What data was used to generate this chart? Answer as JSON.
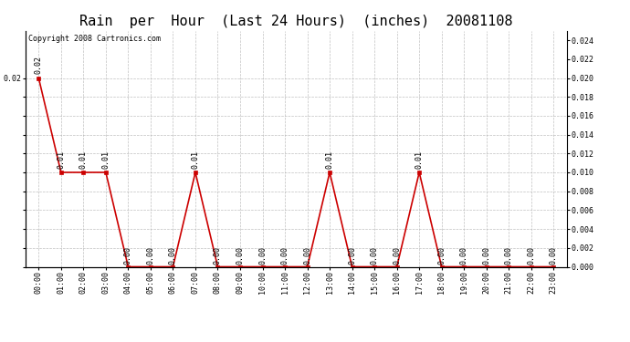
{
  "title": "Rain  per  Hour  (Last 24 Hours)  (inches)  20081108",
  "copyright_text": "Copyright 2008 Cartronics.com",
  "hours": [
    "00:00",
    "01:00",
    "02:00",
    "03:00",
    "04:00",
    "05:00",
    "06:00",
    "07:00",
    "08:00",
    "09:00",
    "10:00",
    "11:00",
    "12:00",
    "13:00",
    "14:00",
    "15:00",
    "16:00",
    "17:00",
    "18:00",
    "19:00",
    "20:00",
    "21:00",
    "22:00",
    "23:00"
  ],
  "values": [
    0.02,
    0.01,
    0.01,
    0.01,
    0.0,
    0.0,
    0.0,
    0.01,
    0.0,
    0.0,
    0.0,
    0.0,
    0.0,
    0.01,
    0.0,
    0.0,
    0.0,
    0.01,
    0.0,
    0.0,
    0.0,
    0.0,
    0.0,
    0.0
  ],
  "line_color": "#cc0000",
  "marker_color": "#cc0000",
  "bg_color": "#ffffff",
  "plot_bg_color": "#ffffff",
  "grid_color": "#b0b0b0",
  "ylim": [
    0,
    0.025
  ],
  "yticks_left": [
    0.02
  ],
  "yticks_right": [
    0.0,
    0.002,
    0.004,
    0.006,
    0.008,
    0.01,
    0.012,
    0.014,
    0.016,
    0.018,
    0.02,
    0.022,
    0.024
  ],
  "title_fontsize": 11,
  "annotation_fontsize": 6,
  "copyright_fontsize": 6,
  "tick_fontsize": 6
}
